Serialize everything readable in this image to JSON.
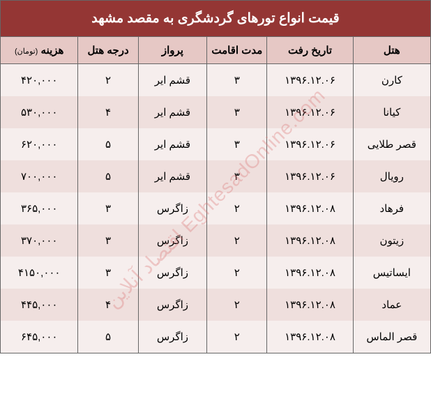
{
  "title": "قیمت انواع تورهای گردشگری به مقصد مشهد",
  "watermark": "EghtesadOnline.com اقتصاد آنلاین",
  "colors": {
    "header_bg": "#943634",
    "header_text": "#ffffff",
    "th_bg": "#e6c8c5",
    "row_odd": "#f6eeed",
    "row_even": "#efdfdd",
    "border": "#666666",
    "text": "#000000",
    "watermark": "rgba(220,120,120,0.35)"
  },
  "columns": [
    {
      "key": "hotel",
      "label": "هتل"
    },
    {
      "key": "date",
      "label": "تاریخ رفت"
    },
    {
      "key": "duration",
      "label": "مدت اقامت"
    },
    {
      "key": "flight",
      "label": "پرواز"
    },
    {
      "key": "grade",
      "label": "درجه هتل"
    },
    {
      "key": "cost",
      "label": "هزینه",
      "sublabel": "(تومان)"
    }
  ],
  "rows": [
    {
      "hotel": "کارن",
      "date": "۱۳۹۶.۱۲.۰۶",
      "duration": "۳",
      "flight": "قشم ایر",
      "grade": "۲",
      "cost": "۴۲۰,۰۰۰"
    },
    {
      "hotel": "کیانا",
      "date": "۱۳۹۶.۱۲.۰۶",
      "duration": "۳",
      "flight": "قشم ایر",
      "grade": "۴",
      "cost": "۵۳۰,۰۰۰"
    },
    {
      "hotel": "قصر طلایی",
      "date": "۱۳۹۶.۱۲.۰۶",
      "duration": "۳",
      "flight": "قشم ایر",
      "grade": "۵",
      "cost": "۶۲۰,۰۰۰"
    },
    {
      "hotel": "رویال",
      "date": "۱۳۹۶.۱۲.۰۶",
      "duration": "۳",
      "flight": "قشم ایر",
      "grade": "۵",
      "cost": "۷۰۰,۰۰۰"
    },
    {
      "hotel": "فرهاد",
      "date": "۱۳۹۶.۱۲.۰۸",
      "duration": "۲",
      "flight": "زاگرس",
      "grade": "۳",
      "cost": "۳۶۵,۰۰۰"
    },
    {
      "hotel": "زیتون",
      "date": "۱۳۹۶.۱۲.۰۸",
      "duration": "۲",
      "flight": "زاگرس",
      "grade": "۳",
      "cost": "۳۷۰,۰۰۰"
    },
    {
      "hotel": "ایساتیس",
      "date": "۱۳۹۶.۱۲.۰۸",
      "duration": "۲",
      "flight": "زاگرس",
      "grade": "۳",
      "cost": "۴۱۵۰,۰۰۰"
    },
    {
      "hotel": "عماد",
      "date": "۱۳۹۶.۱۲.۰۸",
      "duration": "۲",
      "flight": "زاگرس",
      "grade": "۴",
      "cost": "۴۴۵,۰۰۰"
    },
    {
      "hotel": "قصر الماس",
      "date": "۱۳۹۶.۱۲.۰۸",
      "duration": "۲",
      "flight": "زاگرس",
      "grade": "۵",
      "cost": "۶۴۵,۰۰۰"
    }
  ]
}
